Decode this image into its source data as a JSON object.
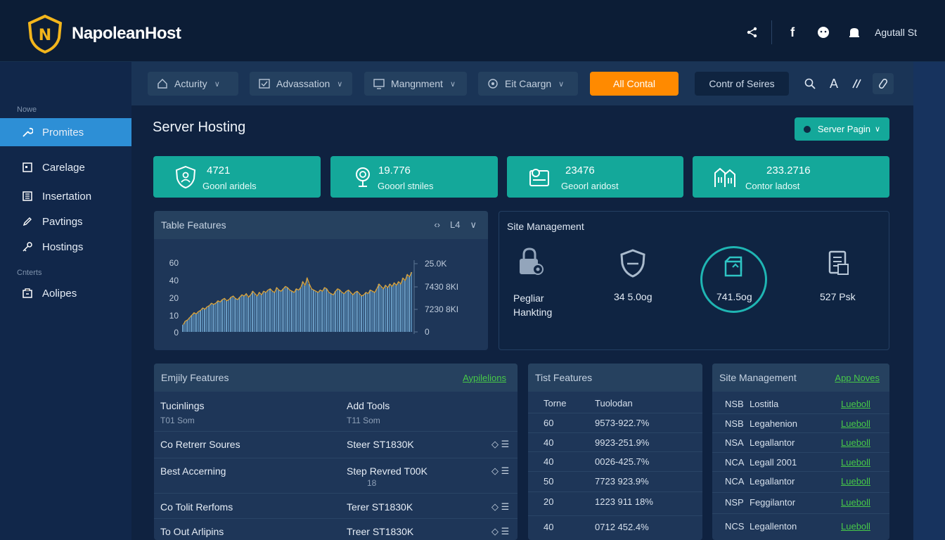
{
  "header": {
    "brand": "NapoleanHost",
    "logo_letter": "N",
    "user_label": "Agutall St",
    "icons": [
      "share-icon",
      "facebook-icon",
      "chat-icon",
      "bell-icon"
    ]
  },
  "sidebar": {
    "section1": "Nowe",
    "section2": "Cnterts",
    "items": [
      {
        "label": "Promites",
        "icon": "wrench-icon",
        "active": true
      },
      {
        "label": "Carelage",
        "icon": "calendar-icon"
      },
      {
        "label": "Insertation",
        "icon": "building-icon"
      },
      {
        "label": "Pavtings",
        "icon": "pencil-icon"
      },
      {
        "label": "Hostings",
        "icon": "key-icon"
      },
      {
        "label": "Aolipes",
        "icon": "box-icon"
      }
    ]
  },
  "toolbar": {
    "buttons": [
      {
        "label": "Acturity",
        "icon": "home-icon"
      },
      {
        "label": "Advassation",
        "icon": "check-box-icon"
      },
      {
        "label": "Mangnment",
        "icon": "monitor-icon"
      },
      {
        "label": "Eit Caargn",
        "icon": "settings-icon"
      }
    ],
    "primary": "All Contal",
    "secondary": "Contr of Seires",
    "icon_letter": "A"
  },
  "page": {
    "title": "Server Hosting",
    "action_button": "Server Pagin"
  },
  "stats": [
    {
      "value": "4721",
      "label": "Goonl aridels",
      "icon": "shield-person-icon"
    },
    {
      "value": "19.776",
      "label": "Gooorl stniles",
      "icon": "trophy-icon"
    },
    {
      "value": "23476",
      "label": "Geoorl aridost",
      "icon": "package-icon"
    },
    {
      "value": "233.2716",
      "label": "Contor ladost",
      "icon": "buildings-icon"
    }
  ],
  "chart_panel": {
    "title": "Table Features",
    "control_text": "L4",
    "chart_data": {
      "type": "area",
      "title": "",
      "y_left_ticks": [
        "60",
        "40",
        "20",
        "10",
        "0"
      ],
      "y_right_ticks": [
        "25.0K",
        "7430 8KI",
        "7230 8KI",
        "0"
      ],
      "ylim": [
        0,
        60
      ],
      "values": [
        6,
        9,
        10,
        12,
        14,
        16,
        15,
        17,
        18,
        20,
        19,
        21,
        22,
        24,
        23,
        24,
        26,
        25,
        27,
        28,
        26,
        27,
        29,
        30,
        28,
        27,
        29,
        31,
        30,
        32,
        29,
        31,
        34,
        32,
        30,
        33,
        31,
        34,
        33,
        35,
        36,
        34,
        33,
        37,
        35,
        34,
        36,
        38,
        37,
        35,
        34,
        33,
        36,
        35,
        37,
        42,
        39,
        45,
        40,
        36,
        35,
        34,
        33,
        35,
        34,
        37,
        36,
        33,
        32,
        31,
        34,
        36,
        35,
        33,
        32,
        34,
        35,
        33,
        31,
        33,
        34,
        32,
        30,
        31,
        33,
        32,
        35,
        34,
        33,
        36,
        40,
        38,
        36,
        39,
        37,
        40,
        38,
        41,
        39,
        42,
        40,
        45,
        43,
        48,
        46,
        50
      ]
    }
  },
  "site_management": {
    "title": "Site Management",
    "items": [
      {
        "label": "Pegliar\nHankting",
        "icon": "lock-icon"
      },
      {
        "label": "34 5.0og",
        "icon": "shield-icon"
      },
      {
        "label": "741.5og",
        "icon": "cloud-box-icon"
      },
      {
        "label": "527 Psk",
        "icon": "document-icon"
      }
    ]
  },
  "feature_list": {
    "title": "Emjily Features",
    "link": "Aypilelions",
    "rows": [
      {
        "c1": "Tucinlings",
        "c1_sub": "T01 Som",
        "c2": "Add Tools",
        "c2_sub": "T11 Som"
      },
      {
        "c1": "Co Retrerr Soures",
        "c2": "Steer ST1830K",
        "c3": "◇ ☰"
      },
      {
        "c1": "Best Accerning",
        "c2": "Step Revred T00K",
        "c2_sub": "18",
        "c3": "◇ ☰"
      },
      {
        "c1": "Co Tolit Rerfoms",
        "c2": "Terer ST1830K",
        "c3": "◇ ☰"
      },
      {
        "c1": "To Out Arlipins",
        "c2": "Treer ST1830K",
        "c3": "◇ ☰"
      }
    ]
  },
  "test_features": {
    "title": "Tist Features",
    "header": {
      "a": "Torne",
      "b": "Tuolodan"
    },
    "rows": [
      {
        "a": "60",
        "b": "9573-922.7%"
      },
      {
        "a": "40",
        "b": "9923-251.9%"
      },
      {
        "a": "40",
        "b": "0026-425.7%"
      },
      {
        "a": "50",
        "b": "7723 923.9%"
      },
      {
        "a": "20",
        "b": "1223 911 18%"
      },
      {
        "a": "40",
        "b": "0712 452.4%"
      }
    ]
  },
  "site_mgmt_table": {
    "title": "Site Management",
    "link": "App Noves",
    "rows": [
      {
        "a": "NSB",
        "b": "Lostitla",
        "c": "Lueboll"
      },
      {
        "a": "NSB",
        "b": "Legahenion",
        "c": "Lueboll"
      },
      {
        "a": "NSA",
        "b": "Legallantor",
        "c": "Lueboll"
      },
      {
        "a": "NCA",
        "b": "Legall 2001",
        "c": "Lueboll"
      },
      {
        "a": "NCA",
        "b": "Legallantor",
        "c": "Lueboll"
      },
      {
        "a": "NSP",
        "b": "Feggilantor",
        "c": "Lueboll"
      },
      {
        "a": "NCS",
        "b": "Legallenton",
        "c": "Lueboll"
      }
    ]
  }
}
